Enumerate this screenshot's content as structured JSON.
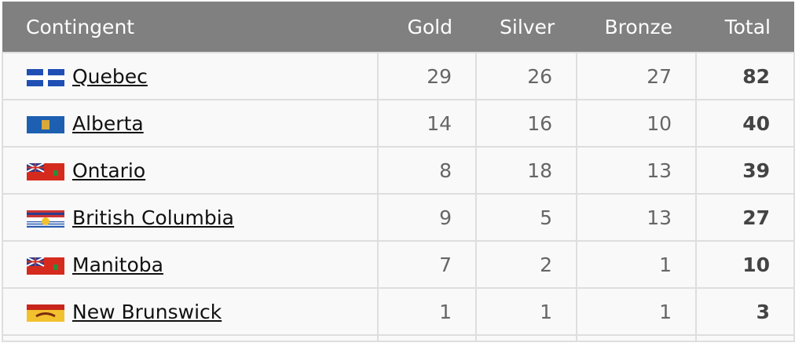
{
  "header": {
    "columns": [
      "Contingent",
      "Gold",
      "Silver",
      "Bronze",
      "Total"
    ]
  },
  "table": {
    "rows": [
      [
        "Quebec",
        29,
        26,
        27,
        82
      ],
      [
        "Alberta",
        14,
        16,
        10,
        40
      ],
      [
        "Ontario",
        8,
        18,
        13,
        39
      ],
      [
        "British Columbia",
        9,
        5,
        13,
        27
      ],
      [
        "Manitoba",
        7,
        2,
        1,
        10
      ],
      [
        "New Brunswick",
        1,
        1,
        1,
        3
      ]
    ]
  }
}
